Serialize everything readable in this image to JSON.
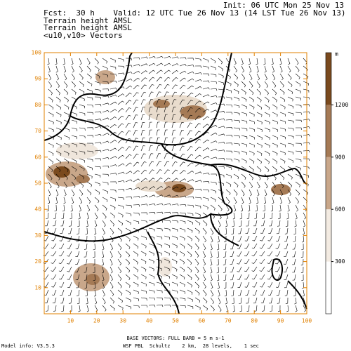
{
  "header": {
    "init": "Init: 06 UTC Mon 25 Nov 13",
    "valid": "Fcst:  30 h    Valid: 12 UTC Tue 26 Nov 13 (14 LST Tue 26 Nov 13)",
    "field1": "Terrain height AMSL",
    "field2": "Terrain height AMSL",
    "field3": "<u10,v10> Vectors"
  },
  "map": {
    "xlim": [
      0,
      100
    ],
    "ylim": [
      0,
      100
    ],
    "xticks": [
      10,
      20,
      30,
      40,
      50,
      60,
      70,
      80,
      90,
      100
    ],
    "yticks": [
      10,
      20,
      30,
      40,
      50,
      60,
      70,
      80,
      90,
      100
    ],
    "axis_color": "#e08000",
    "colorbar": {
      "unit": "m",
      "range": [
        0,
        1500
      ],
      "ticks": [
        300,
        600,
        900,
        1200
      ],
      "levels": [
        0,
        300,
        600,
        900,
        1200,
        1500
      ],
      "colors": [
        "#ffffff",
        "#f3ebe2",
        "#c9a78a",
        "#a57a55",
        "#7a4a1e"
      ]
    }
  },
  "footer": {
    "model": "Model info: V3.5.3",
    "vectors": "BASE VECTORS: FULL BARB = 5 m s-1",
    "physics": "WSF PBL  Schultz    2 km,  28 levels,    1 sec"
  }
}
